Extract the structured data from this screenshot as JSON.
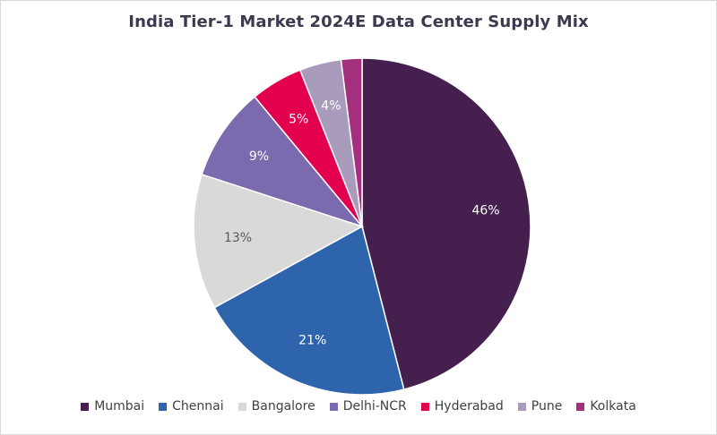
{
  "chart_data": {
    "type": "pie",
    "title": "India Tier-1 Market 2024E Data Center Supply Mix",
    "categories": [
      "Mumbai",
      "Chennai",
      "Bangalore",
      "Delhi-NCR",
      "Hyderabad",
      "Pune",
      "Kolkata"
    ],
    "values": [
      46,
      21,
      13,
      9,
      5,
      4,
      2
    ],
    "labels": [
      "46%",
      "21%",
      "13%",
      "9%",
      "5%",
      "4%",
      ""
    ],
    "label_colors": [
      "#ffffff",
      "#ffffff",
      "#595959",
      "#ffffff",
      "#ffffff",
      "#ffffff",
      "#ffffff"
    ],
    "colors": [
      "#45204f",
      "#2e64ab",
      "#d9d9d9",
      "#7b6aad",
      "#e3004f",
      "#a99bbb",
      "#a3307d"
    ],
    "legend_position": "bottom"
  }
}
